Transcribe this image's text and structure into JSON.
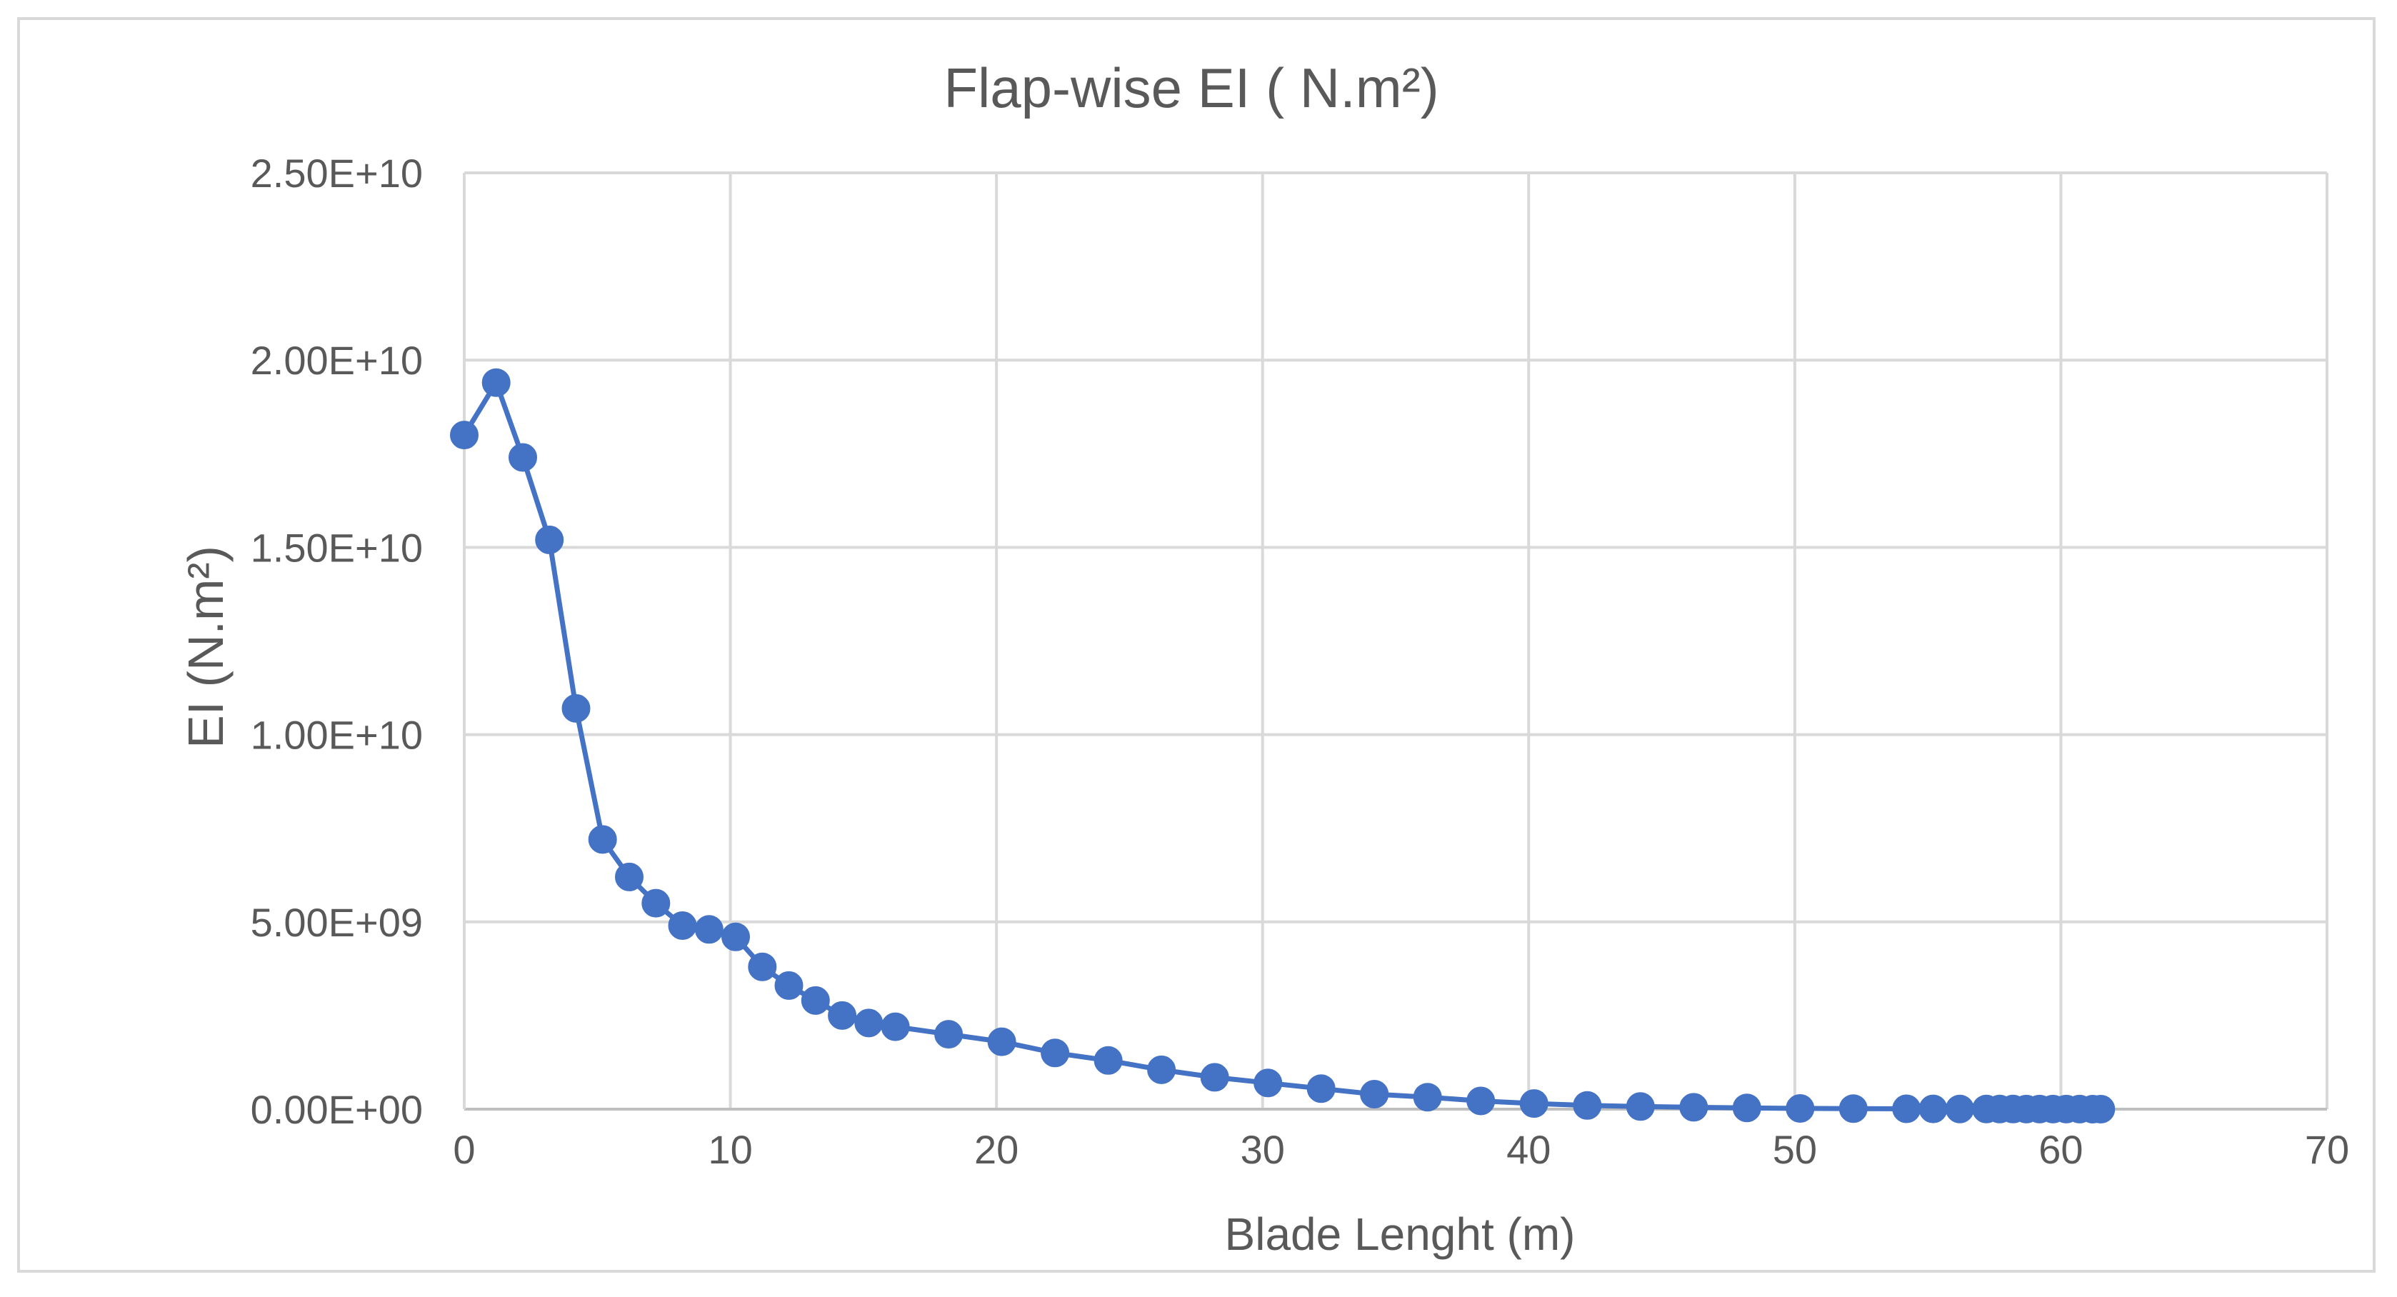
{
  "chart_data": {
    "type": "line",
    "title": "Flap-wise EI ( N.m²)",
    "xlabel": "Blade Lenght (m)",
    "ylabel": "EI (N.m²)",
    "xlim": [
      0,
      70
    ],
    "ylim": [
      0,
      25000000000
    ],
    "x_ticks": [
      "0",
      "10",
      "20",
      "30",
      "40",
      "50",
      "60",
      "70"
    ],
    "x_tick_values": [
      0,
      10,
      20,
      30,
      40,
      50,
      60,
      70
    ],
    "y_ticks": [
      "0.00E+00",
      "5.00E+09",
      "1.00E+10",
      "1.50E+10",
      "2.00E+10",
      "2.50E+10"
    ],
    "y_tick_values": [
      0,
      5000000000,
      10000000000,
      15000000000,
      20000000000,
      25000000000
    ],
    "grid": true,
    "legend": false,
    "markers": true,
    "series_color": "#4472c4",
    "series": [
      {
        "x": [
          0.0,
          1.2,
          2.2,
          3.2,
          4.2,
          5.2,
          6.2,
          7.2,
          8.2,
          9.2,
          10.2,
          11.2,
          12.2,
          13.2,
          14.2,
          15.2,
          16.2,
          18.2,
          20.2,
          22.2,
          24.2,
          26.2,
          28.2,
          30.2,
          32.2,
          34.2,
          36.2,
          38.2,
          40.2,
          42.2,
          44.2,
          46.2,
          48.2,
          50.2,
          52.2,
          54.2,
          55.2,
          56.2,
          57.2,
          57.7,
          58.2,
          58.7,
          59.2,
          59.7,
          60.2,
          60.7,
          61.2,
          61.5
        ],
        "y": [
          18000000000,
          19400000000,
          17400000000,
          15200000000,
          10700000000,
          7200000000,
          6200000000,
          5500000000,
          4900000000,
          4800000000,
          4600000000,
          3800000000,
          3300000000,
          2900000000,
          2500000000,
          2300000000,
          2200000000,
          2000000000,
          1800000000,
          1500000000,
          1300000000,
          1050000000,
          850000000,
          700000000,
          550000000,
          400000000,
          320000000,
          220000000,
          150000000,
          100000000,
          70000000,
          50000000,
          35000000,
          20000000,
          15000000,
          10000000,
          8000000,
          6000000,
          5000000,
          4000000,
          3000000,
          2500000,
          2000000,
          1500000,
          1200000,
          1000000,
          800000,
          500000
        ]
      }
    ]
  }
}
